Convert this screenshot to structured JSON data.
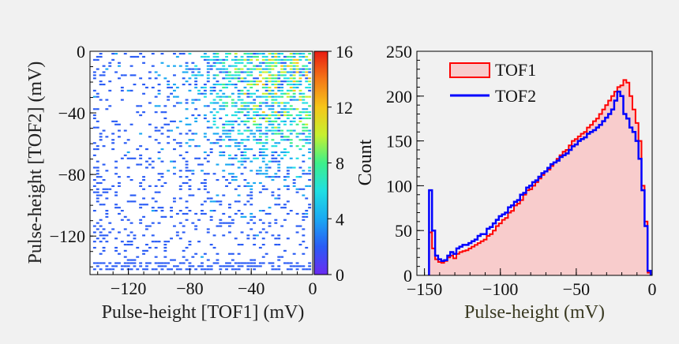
{
  "colors": {
    "background": "#f1f1f1",
    "tof1": "#ff0000",
    "tof1_fill": "#f8cccc",
    "tof2": "#0000ff",
    "heatmap_colormap": [
      "#6b2bf2",
      "#2a5cf5",
      "#1aa9f2",
      "#20dfe2",
      "#3ef08a",
      "#c6f030",
      "#f6c61a",
      "#f47818",
      "#e81c12"
    ]
  },
  "chart_data": [
    {
      "type": "heatmap",
      "title": "",
      "xlabel": "Pulse-height [TOF1] (mV)",
      "ylabel": "Pulse-height [TOF2] (mV)",
      "xlim": [
        -145,
        0
      ],
      "ylim": [
        -145,
        0
      ],
      "x_ticks": [
        -120,
        -80,
        -40,
        0
      ],
      "y_ticks": [
        0,
        -40,
        -80,
        -120
      ],
      "x_tick_labels": [
        "−120",
        "−80",
        "−40",
        "0"
      ],
      "y_tick_labels": [
        "0",
        "−40",
        "−80",
        "−120"
      ],
      "colorbar": {
        "range": [
          0,
          16
        ],
        "ticks": [
          0,
          4,
          8,
          12,
          16
        ],
        "tick_labels": [
          "0",
          "4",
          "8",
          "12",
          "16"
        ]
      },
      "bin_width": 2,
      "density_description_counts": {
        "peak_x": -20,
        "peak_y": -20,
        "max_count": 13
      }
    },
    {
      "type": "line",
      "title": "",
      "xlabel": "Pulse-height (mV)",
      "ylabel": "Count",
      "xlim": [
        -155,
        0
      ],
      "ylim": [
        0,
        250
      ],
      "x_ticks": [
        -150,
        -100,
        -50,
        0
      ],
      "y_ticks": [
        0,
        50,
        100,
        150,
        200,
        250
      ],
      "x_tick_labels": [
        "−150",
        "−100",
        "−50",
        "0"
      ],
      "y_tick_labels": [
        "0",
        "50",
        "100",
        "150",
        "200",
        "250"
      ],
      "legend": "top-left",
      "x": [
        -146,
        -144,
        -142,
        -140,
        -138,
        -136,
        -134,
        -132,
        -130,
        -128,
        -126,
        -124,
        -122,
        -120,
        -118,
        -116,
        -114,
        -112,
        -110,
        -108,
        -106,
        -104,
        -102,
        -100,
        -98,
        -96,
        -94,
        -92,
        -90,
        -88,
        -86,
        -84,
        -82,
        -80,
        -78,
        -76,
        -74,
        -72,
        -70,
        -68,
        -66,
        -64,
        -62,
        -60,
        -58,
        -56,
        -54,
        -52,
        -50,
        -48,
        -46,
        -44,
        -42,
        -40,
        -38,
        -36,
        -34,
        -32,
        -30,
        -28,
        -26,
        -24,
        -22,
        -20,
        -18,
        -16,
        -14,
        -12,
        -10,
        -8,
        -6,
        -4,
        -2
      ],
      "series": [
        {
          "name": "TOF1",
          "values": [
            48,
            30,
            18,
            15,
            14,
            16,
            20,
            22,
            19,
            24,
            26,
            27,
            28,
            30,
            32,
            34,
            36,
            38,
            40,
            44,
            46,
            50,
            55,
            58,
            62,
            64,
            70,
            72,
            78,
            80,
            84,
            90,
            95,
            96,
            100,
            104,
            108,
            112,
            116,
            118,
            122,
            126,
            130,
            134,
            138,
            140,
            145,
            150,
            152,
            155,
            158,
            160,
            165,
            168,
            172,
            175,
            180,
            185,
            190,
            195,
            200,
            205,
            210,
            212,
            218,
            215,
            200,
            185,
            170,
            150,
            100,
            60,
            3
          ]
        },
        {
          "name": "TOF2",
          "values": [
            95,
            50,
            22,
            18,
            16,
            17,
            22,
            26,
            24,
            30,
            32,
            34,
            34,
            36,
            38,
            40,
            44,
            46,
            46,
            52,
            54,
            58,
            62,
            66,
            68,
            70,
            76,
            78,
            82,
            84,
            90,
            92,
            98,
            100,
            104,
            106,
            110,
            114,
            116,
            120,
            124,
            126,
            128,
            132,
            134,
            136,
            140,
            144,
            146,
            150,
            152,
            154,
            158,
            160,
            162,
            165,
            168,
            172,
            176,
            180,
            185,
            195,
            205,
            200,
            180,
            175,
            165,
            160,
            150,
            130,
            95,
            55,
            5
          ]
        }
      ]
    }
  ]
}
